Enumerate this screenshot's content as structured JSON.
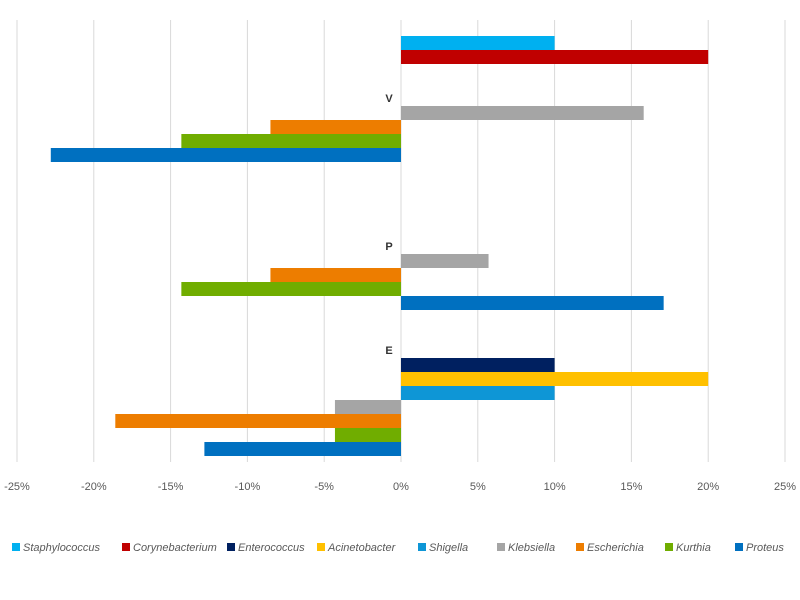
{
  "chart_data": {
    "type": "bar",
    "orientation": "horizontal",
    "title": "",
    "xlabel": "",
    "ylabel": "",
    "xlim": [
      -25,
      25
    ],
    "x_unit": "%",
    "x_ticks": [
      "-25%",
      "-20%",
      "-15%",
      "-10%",
      "-5%",
      "0%",
      "5%",
      "10%",
      "15%",
      "20%",
      "25%"
    ],
    "grid": "vertical",
    "legend_position": "bottom",
    "categories": [
      "",
      "V",
      "P",
      "E"
    ],
    "series": [
      {
        "name": "Staphylococcus",
        "color": "#00B0F0",
        "values": [
          10,
          null,
          null,
          null
        ]
      },
      {
        "name": "Corynebacterium",
        "color": "#C00000",
        "values": [
          20,
          null,
          null,
          null
        ]
      },
      {
        "name": "Enterococcus",
        "color": "#002060",
        "values": [
          null,
          null,
          null,
          10
        ]
      },
      {
        "name": "Acinetobacter",
        "color": "#FFC000",
        "values": [
          null,
          null,
          null,
          20
        ]
      },
      {
        "name": "Shigella",
        "color": "#0E96D6",
        "values": [
          null,
          null,
          null,
          10
        ]
      },
      {
        "name": "Klebsiella",
        "color": "#A5A5A5",
        "values": [
          null,
          15.8,
          5.7,
          -4.3
        ]
      },
      {
        "name": "Escherichia",
        "color": "#ED7D00",
        "values": [
          null,
          -8.5,
          -8.5,
          -18.6
        ]
      },
      {
        "name": "Kurthia",
        "color": "#70AD00",
        "values": [
          null,
          -14.3,
          -14.3,
          -4.3
        ]
      },
      {
        "name": "Proteus",
        "color": "#0070C0",
        "values": [
          null,
          -22.8,
          17.1,
          -12.8
        ]
      }
    ]
  }
}
